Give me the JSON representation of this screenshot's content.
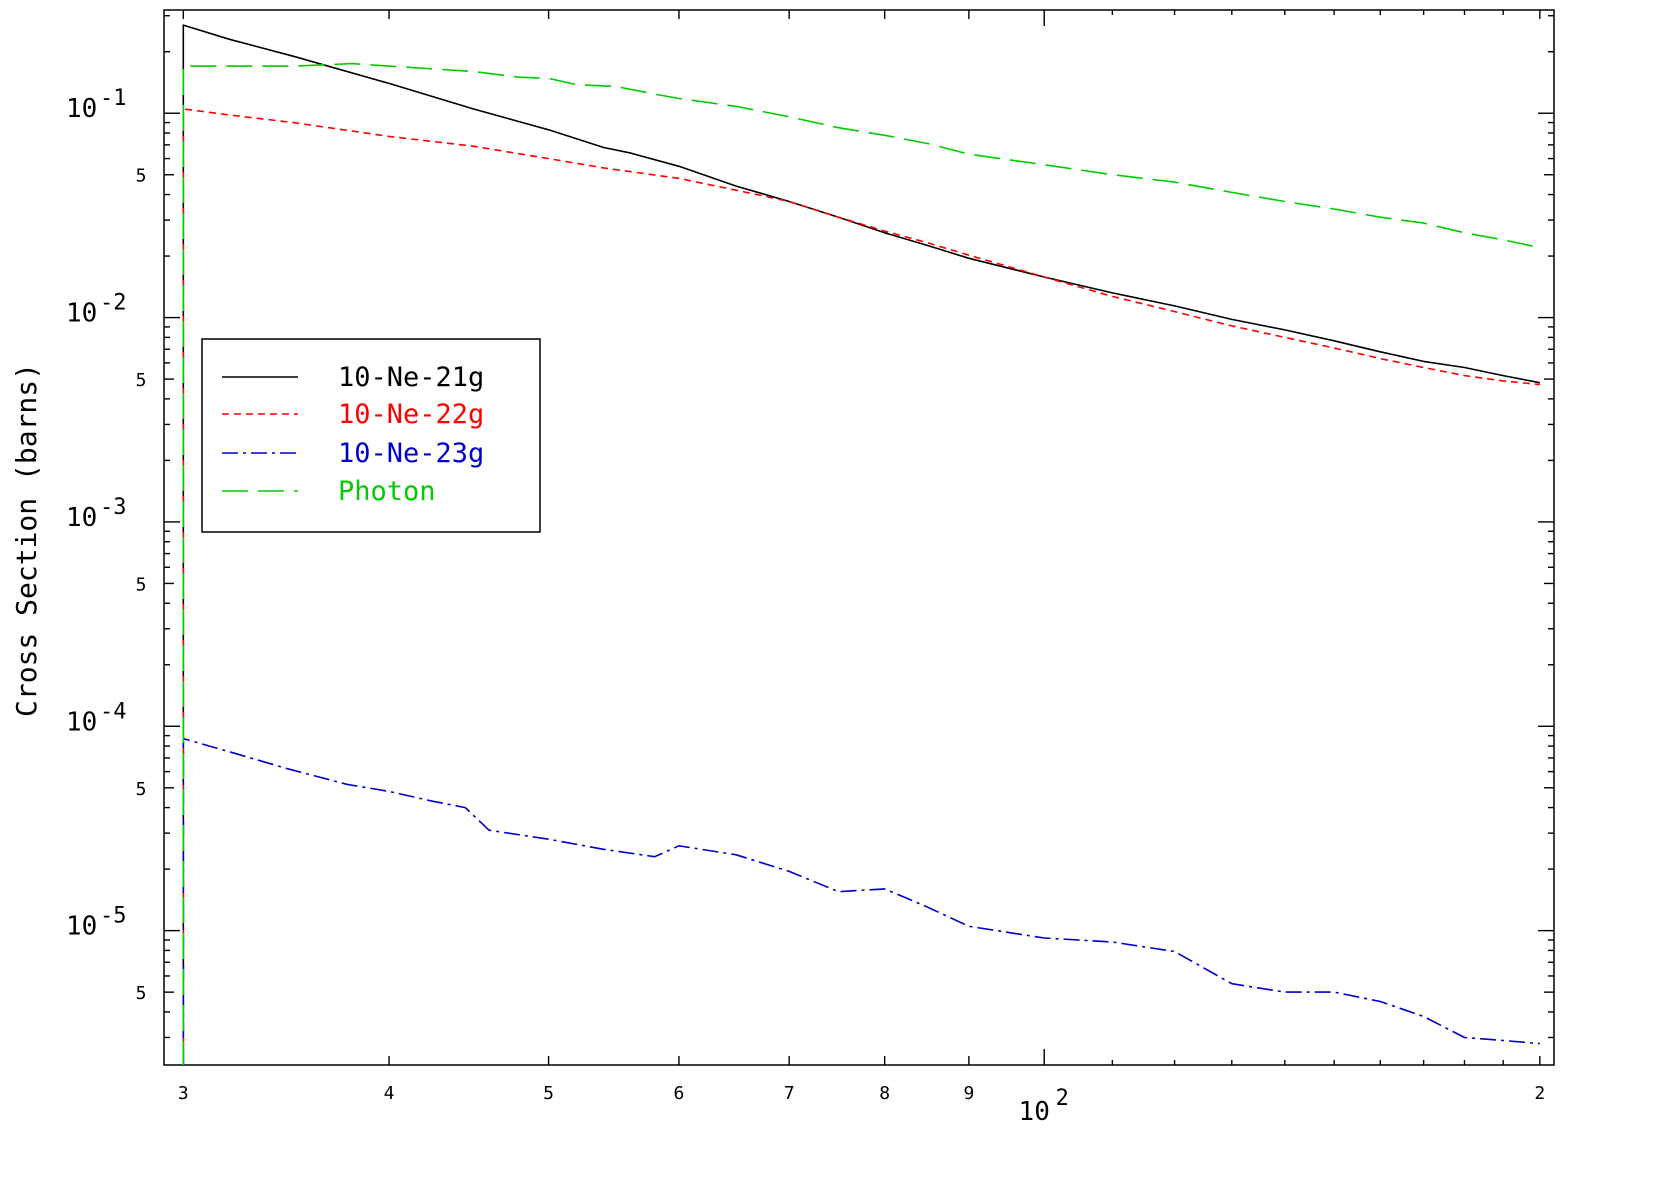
{
  "chart_data": {
    "type": "line",
    "title": "",
    "xlabel": "",
    "ylabel": "Cross Section (barns)",
    "xscale": "log",
    "yscale": "log",
    "xlim": [
      29.2,
      204
    ],
    "ylim": [
      2.2e-06,
      0.32
    ],
    "grid": false,
    "legend_position": "upper-left",
    "x_tick_labels": [
      {
        "value": 30,
        "label": "3"
      },
      {
        "value": 40,
        "label": "4"
      },
      {
        "value": 50,
        "label": "5"
      },
      {
        "value": 60,
        "label": "6"
      },
      {
        "value": 70,
        "label": "7"
      },
      {
        "value": 80,
        "label": "8"
      },
      {
        "value": 90,
        "label": "9"
      },
      {
        "value": 100,
        "label": "10",
        "sup": "2"
      },
      {
        "value": 200,
        "label": "2"
      }
    ],
    "y_tick_labels": [
      {
        "value": 0.1,
        "label": "10",
        "sup": "-1"
      },
      {
        "value": 0.05,
        "label": "5"
      },
      {
        "value": 0.01,
        "label": "10",
        "sup": "-2"
      },
      {
        "value": 0.005,
        "label": "5"
      },
      {
        "value": 0.001,
        "label": "10",
        "sup": "-3"
      },
      {
        "value": 0.0005,
        "label": "5"
      },
      {
        "value": 0.0001,
        "label": "10",
        "sup": "-4"
      },
      {
        "value": 5e-05,
        "label": "5"
      },
      {
        "value": 1e-05,
        "label": "10",
        "sup": "-5"
      },
      {
        "value": 5e-06,
        "label": "5"
      }
    ],
    "series": [
      {
        "name": "10-Ne-21g",
        "color": "#000000",
        "dash": "solid",
        "x": [
          30,
          32,
          35,
          40,
          45,
          50,
          54,
          56,
          60,
          65,
          70,
          75,
          80,
          85,
          90,
          100,
          110,
          120,
          130,
          140,
          150,
          160,
          170,
          180,
          190,
          200
        ],
        "y": [
          0.27,
          0.23,
          0.19,
          0.14,
          0.105,
          0.083,
          0.068,
          0.064,
          0.055,
          0.044,
          0.037,
          0.031,
          0.026,
          0.0225,
          0.0195,
          0.0158,
          0.0132,
          0.0114,
          0.0098,
          0.0087,
          0.0077,
          0.0068,
          0.0061,
          0.0057,
          0.0052,
          0.0048
        ]
      },
      {
        "name": "10-Ne-22g",
        "color": "#ff0000",
        "dash": "short",
        "x": [
          30,
          32,
          35,
          40,
          45,
          50,
          54,
          60,
          65,
          70,
          75,
          80,
          85,
          90,
          100,
          110,
          120,
          130,
          140,
          150,
          160,
          170,
          180,
          190,
          200
        ],
        "y": [
          0.105,
          0.098,
          0.09,
          0.077,
          0.069,
          0.06,
          0.054,
          0.048,
          0.042,
          0.037,
          0.031,
          0.0265,
          0.0232,
          0.0202,
          0.0158,
          0.0127,
          0.0107,
          0.0091,
          0.008,
          0.0071,
          0.0063,
          0.0057,
          0.0052,
          0.0049,
          0.0047
        ]
      },
      {
        "name": "10-Ne-23g",
        "color": "#0000cc",
        "dash": "dashdot",
        "x": [
          30,
          32,
          34.7,
          37.7,
          40,
          42.5,
          44.5,
          46,
          50,
          54,
          58,
          60,
          65,
          70,
          75,
          80,
          85,
          90,
          100,
          110,
          120,
          130,
          140,
          150,
          160,
          170,
          180,
          190,
          200
        ],
        "y": [
          8.7e-05,
          7.5e-05,
          6.2e-05,
          5.2e-05,
          4.8e-05,
          4.3e-05,
          4e-05,
          3.1e-05,
          2.8e-05,
          2.5e-05,
          2.3e-05,
          2.6e-05,
          2.35e-05,
          1.95e-05,
          1.55e-05,
          1.6e-05,
          1.3e-05,
          1.05e-05,
          9.2e-06,
          8.8e-06,
          7.9e-06,
          5.5e-06,
          5e-06,
          5e-06,
          4.5e-06,
          3.8e-06,
          3e-06,
          2.9e-06,
          2.8e-06
        ]
      },
      {
        "name": "Photon",
        "color": "#00cc00",
        "dash": "long",
        "x": [
          30,
          35,
          38,
          40,
          45,
          48,
          50,
          52,
          55,
          58,
          60,
          65,
          70,
          75,
          80,
          85,
          90,
          100,
          110,
          120,
          130,
          140,
          150,
          160,
          170,
          180,
          190,
          200
        ],
        "y": [
          0.17,
          0.17,
          0.175,
          0.17,
          0.16,
          0.15,
          0.148,
          0.138,
          0.135,
          0.124,
          0.118,
          0.108,
          0.096,
          0.085,
          0.078,
          0.071,
          0.063,
          0.056,
          0.05,
          0.046,
          0.041,
          0.037,
          0.034,
          0.031,
          0.029,
          0.026,
          0.024,
          0.022
        ]
      }
    ]
  },
  "colors": {
    "axes": "#000000",
    "background": "#ffffff"
  }
}
